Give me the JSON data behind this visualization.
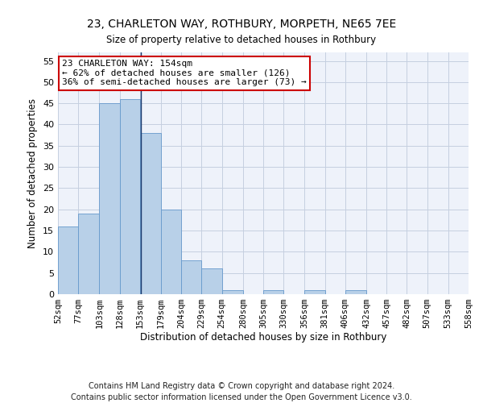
{
  "title1": "23, CHARLETON WAY, ROTHBURY, MORPETH, NE65 7EE",
  "title2": "Size of property relative to detached houses in Rothbury",
  "xlabel": "Distribution of detached houses by size in Rothbury",
  "ylabel": "Number of detached properties",
  "all_values": [
    16,
    19,
    45,
    46,
    38,
    20,
    8,
    6,
    1,
    0,
    1,
    0,
    1,
    0,
    1,
    0,
    0,
    0,
    0,
    0
  ],
  "bar_color": "#b8d0e8",
  "bar_edge_color": "#6699cc",
  "x_labels": [
    "52sqm",
    "77sqm",
    "103sqm",
    "128sqm",
    "153sqm",
    "179sqm",
    "204sqm",
    "229sqm",
    "254sqm",
    "280sqm",
    "305sqm",
    "330sqm",
    "356sqm",
    "381sqm",
    "406sqm",
    "432sqm",
    "457sqm",
    "482sqm",
    "507sqm",
    "533sqm",
    "558sqm"
  ],
  "tick_positions": [
    52,
    77,
    103,
    128,
    153,
    179,
    204,
    229,
    254,
    280,
    305,
    330,
    356,
    381,
    406,
    432,
    457,
    482,
    507,
    533,
    558
  ],
  "ylim": [
    0,
    57
  ],
  "property_line_x": 154,
  "annotation_line1": "23 CHARLETON WAY: 154sqm",
  "annotation_line2": "← 62% of detached houses are smaller (126)",
  "annotation_line3": "36% of semi-detached houses are larger (73) →",
  "annotation_box_color": "#ffffff",
  "annotation_box_edge": "#cc0000",
  "footer1": "Contains HM Land Registry data © Crown copyright and database right 2024.",
  "footer2": "Contains public sector information licensed under the Open Government Licence v3.0.",
  "bg_color": "#eef2fa",
  "grid_color": "#c5cfe0"
}
